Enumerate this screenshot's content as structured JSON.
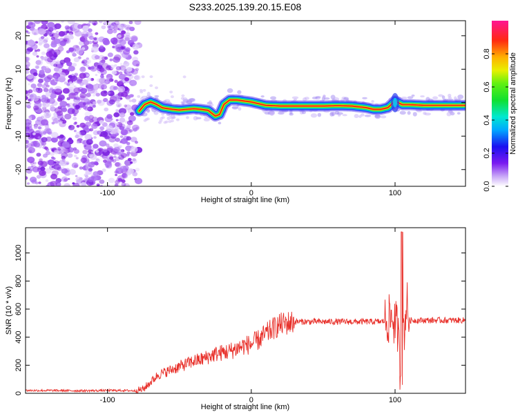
{
  "title": "S233.2025.139.20.15.E08",
  "chart_data": [
    {
      "type": "heatmap",
      "xlabel": "Height of straight line (km)",
      "ylabel": "Frequency (Hz)",
      "xlim": [
        -157,
        149
      ],
      "ylim": [
        -25,
        24.5
      ],
      "xticks": [
        -100,
        0,
        100
      ],
      "yticks": [
        -20,
        -10,
        0,
        10,
        20
      ],
      "colorbar": {
        "label": "Normalized spectral amplitude",
        "range": [
          0,
          1
        ],
        "ticks": [
          "0.0",
          "0.2",
          "0.4",
          "0.6",
          "0.8"
        ],
        "tick_values": [
          0,
          0.2,
          0.4,
          0.6,
          0.8
        ]
      },
      "noise_region_end_km": -80,
      "ridge": {
        "x": [
          -78,
          -74,
          -70,
          -66,
          -62,
          -55,
          -50,
          -45,
          -40,
          -35,
          -30,
          -25,
          -22,
          -19,
          -15,
          -10,
          -5,
          0,
          5,
          10,
          20,
          30,
          40,
          50,
          60,
          70,
          80,
          85,
          90,
          95,
          100,
          105,
          110,
          120,
          130,
          140,
          149
        ],
        "y": [
          -2.5,
          -0.5,
          0.2,
          -0.5,
          -1.5,
          -2.0,
          -2.2,
          -2.0,
          -1.8,
          -2.0,
          -2.3,
          -4.0,
          -3.5,
          -0.5,
          0.8,
          0.8,
          0.5,
          0.2,
          -0.3,
          -0.8,
          -1.0,
          -1.0,
          -1.0,
          -1.0,
          -0.9,
          -1.0,
          -1.5,
          -2.0,
          -2.0,
          -1.5,
          0.5,
          -0.6,
          -0.6,
          -0.8,
          -0.8,
          -0.8,
          -0.8
        ]
      }
    },
    {
      "type": "line",
      "xlabel": "Height of straight line (km)",
      "ylabel": "SNR (10 * v/v)",
      "xlim": [
        -157,
        149
      ],
      "ylim": [
        0,
        1180
      ],
      "xticks": [
        -100,
        0,
        100
      ],
      "yticks": [
        0,
        200,
        400,
        600,
        800,
        1000
      ],
      "color": "#e8302a",
      "series": [
        {
          "x": [
            -157,
            -140,
            -120,
            -100,
            -90,
            -80,
            -75,
            -70,
            -65,
            -60,
            -55,
            -50,
            -45,
            -40,
            -35,
            -30,
            -25,
            -20,
            -15,
            -10,
            -5,
            0,
            5,
            10,
            15,
            20,
            25,
            30,
            35,
            40,
            50,
            60,
            70,
            80,
            90,
            95,
            98,
            100,
            102,
            104,
            105,
            106,
            108,
            110,
            120,
            130,
            140,
            149
          ],
          "y": [
            20,
            20,
            18,
            20,
            20,
            18,
            30,
            80,
            130,
            150,
            170,
            190,
            210,
            230,
            240,
            260,
            280,
            290,
            300,
            320,
            340,
            350,
            380,
            420,
            460,
            490,
            500,
            510,
            510,
            510,
            510,
            510,
            510,
            510,
            510,
            520,
            540,
            500,
            450,
            100,
            1150,
            400,
            650,
            520,
            520,
            520,
            520,
            520
          ]
        }
      ]
    }
  ]
}
